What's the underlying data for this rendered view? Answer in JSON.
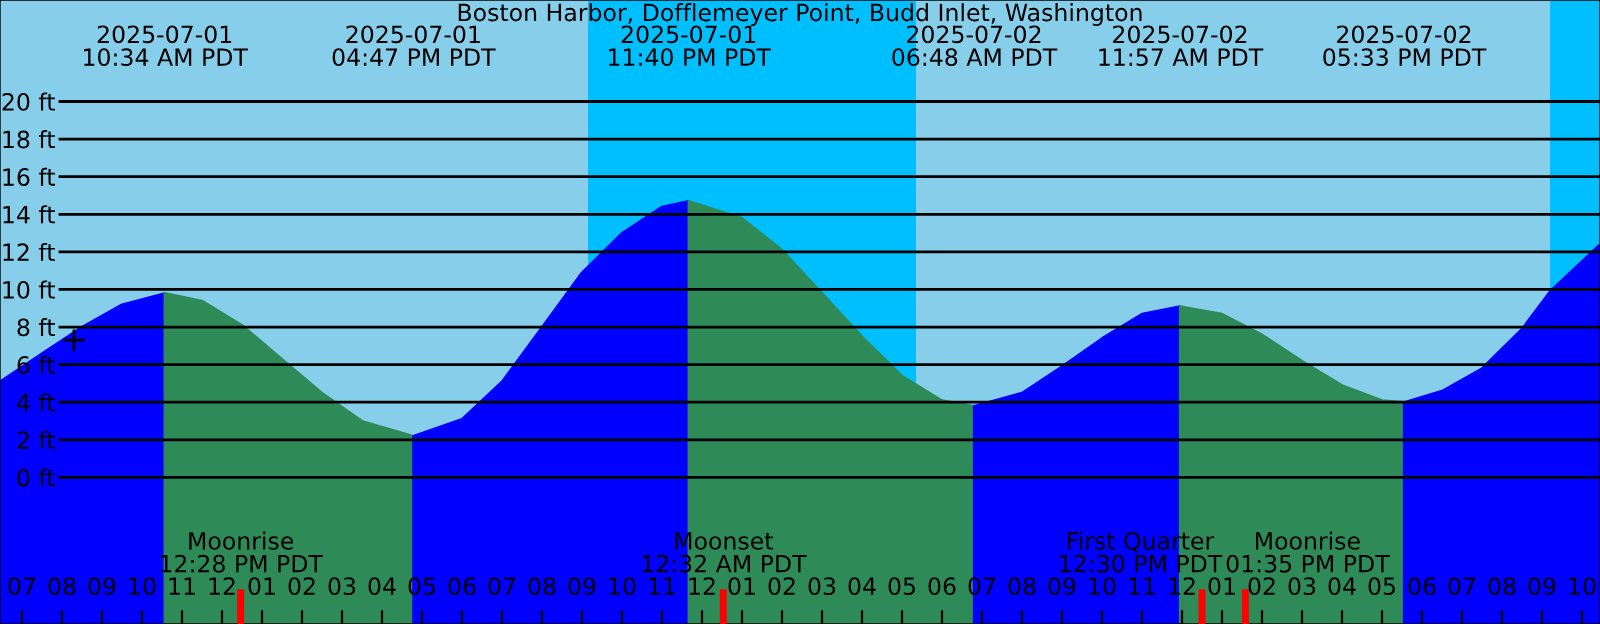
{
  "chart_data": {
    "type": "area",
    "title": "Boston Harbor, Dofflemeyer Point, Budd Inlet, Washington",
    "series": [
      {
        "color": "#0000ff",
        "x": [
          "2025-07-01T06:27",
          "2025-07-01T07:30",
          "2025-07-01T08:30",
          "2025-07-01T09:30",
          "2025-07-01T10:34"
        ],
        "values": [
          5.1,
          6.6,
          8.0,
          9.2,
          9.8
        ]
      },
      {
        "color": "#2e8b57",
        "x": [
          "2025-07-01T10:34",
          "2025-07-01T11:30",
          "2025-07-01T12:30",
          "2025-07-01T13:30",
          "2025-07-01T14:30",
          "2025-07-01T15:30",
          "2025-07-01T16:47"
        ],
        "values": [
          9.8,
          9.4,
          8.1,
          6.3,
          4.5,
          3.0,
          2.2
        ]
      },
      {
        "color": "#0000ff",
        "x": [
          "2025-07-01T16:47",
          "2025-07-01T18:00",
          "2025-07-01T19:00",
          "2025-07-01T20:00",
          "2025-07-01T21:00",
          "2025-07-01T22:00",
          "2025-07-01T23:00",
          "2025-07-01T23:40"
        ],
        "values": [
          2.2,
          3.1,
          5.1,
          8.0,
          10.9,
          13.0,
          14.4,
          14.7
        ]
      },
      {
        "color": "#2e8b57",
        "x": [
          "2025-07-01T23:40",
          "2025-07-02T01:00",
          "2025-07-02T02:00",
          "2025-07-02T03:00",
          "2025-07-02T04:00",
          "2025-07-02T05:00",
          "2025-07-02T06:00",
          "2025-07-02T06:48"
        ],
        "values": [
          14.7,
          13.8,
          12.1,
          9.8,
          7.5,
          5.4,
          4.1,
          3.8
        ]
      },
      {
        "color": "#0000ff",
        "x": [
          "2025-07-02T06:48",
          "2025-07-02T08:00",
          "2025-07-02T09:00",
          "2025-07-02T10:00",
          "2025-07-02T11:00",
          "2025-07-02T11:57"
        ],
        "values": [
          3.8,
          4.5,
          5.9,
          7.4,
          8.7,
          9.1
        ]
      },
      {
        "color": "#2e8b57",
        "x": [
          "2025-07-02T11:57",
          "2025-07-02T13:00",
          "2025-07-02T14:00",
          "2025-07-02T15:00",
          "2025-07-02T16:00",
          "2025-07-02T17:00",
          "2025-07-02T17:33"
        ],
        "values": [
          9.1,
          8.7,
          7.6,
          6.2,
          4.9,
          4.1,
          4.0
        ]
      },
      {
        "color": "#0000ff",
        "x": [
          "2025-07-02T17:33",
          "2025-07-02T18:30",
          "2025-07-02T19:30",
          "2025-07-02T20:30",
          "2025-07-02T21:12",
          "2025-07-02T22:27"
        ],
        "values": [
          4.0,
          4.6,
          5.8,
          7.9,
          9.9,
          12.4
        ]
      },
      {
        "type": "scatter",
        "marker": "cross",
        "color": "#000000",
        "x": [
          "2025-07-01T08:18"
        ],
        "values": [
          7.3
        ]
      }
    ],
    "xlim": [
      "2025-07-01T06:27",
      "2025-07-02T22:27"
    ],
    "ylim": [
      -7.8,
      25.4
    ],
    "xticks": [
      {
        "value": "2025-07-01T07:00",
        "label": "07"
      },
      {
        "value": "2025-07-01T08:00",
        "label": "08"
      },
      {
        "value": "2025-07-01T09:00",
        "label": "09"
      },
      {
        "value": "2025-07-01T10:00",
        "label": "10"
      },
      {
        "value": "2025-07-01T11:00",
        "label": "11"
      },
      {
        "value": "2025-07-01T12:00",
        "label": "12"
      },
      {
        "value": "2025-07-01T13:00",
        "label": "01"
      },
      {
        "value": "2025-07-01T14:00",
        "label": "02"
      },
      {
        "value": "2025-07-01T15:00",
        "label": "03"
      },
      {
        "value": "2025-07-01T16:00",
        "label": "04"
      },
      {
        "value": "2025-07-01T17:00",
        "label": "05"
      },
      {
        "value": "2025-07-01T18:00",
        "label": "06"
      },
      {
        "value": "2025-07-01T19:00",
        "label": "07"
      },
      {
        "value": "2025-07-01T20:00",
        "label": "08"
      },
      {
        "value": "2025-07-01T21:00",
        "label": "09"
      },
      {
        "value": "2025-07-01T22:00",
        "label": "10"
      },
      {
        "value": "2025-07-01T23:00",
        "label": "11"
      },
      {
        "value": "2025-07-02T00:00",
        "label": "12"
      },
      {
        "value": "2025-07-02T01:00",
        "label": "01"
      },
      {
        "value": "2025-07-02T02:00",
        "label": "02"
      },
      {
        "value": "2025-07-02T03:00",
        "label": "03"
      },
      {
        "value": "2025-07-02T04:00",
        "label": "04"
      },
      {
        "value": "2025-07-02T05:00",
        "label": "05"
      },
      {
        "value": "2025-07-02T06:00",
        "label": "06"
      },
      {
        "value": "2025-07-02T07:00",
        "label": "07"
      },
      {
        "value": "2025-07-02T08:00",
        "label": "08"
      },
      {
        "value": "2025-07-02T09:00",
        "label": "09"
      },
      {
        "value": "2025-07-02T10:00",
        "label": "10"
      },
      {
        "value": "2025-07-02T11:00",
        "label": "11"
      },
      {
        "value": "2025-07-02T12:00",
        "label": "12"
      },
      {
        "value": "2025-07-02T13:00",
        "label": "01"
      },
      {
        "value": "2025-07-02T14:00",
        "label": "02"
      },
      {
        "value": "2025-07-02T15:00",
        "label": "03"
      },
      {
        "value": "2025-07-02T16:00",
        "label": "04"
      },
      {
        "value": "2025-07-02T17:00",
        "label": "05"
      },
      {
        "value": "2025-07-02T18:00",
        "label": "06"
      },
      {
        "value": "2025-07-02T19:00",
        "label": "07"
      },
      {
        "value": "2025-07-02T20:00",
        "label": "08"
      },
      {
        "value": "2025-07-02T21:00",
        "label": "09"
      },
      {
        "value": "2025-07-02T22:00",
        "label": "10"
      }
    ],
    "yticks": [
      {
        "value": 0,
        "label": "0 ft"
      },
      {
        "value": 2,
        "label": "2 ft"
      },
      {
        "value": 4,
        "label": "4 ft"
      },
      {
        "value": 6,
        "label": "6 ft"
      },
      {
        "value": 8,
        "label": "8 ft"
      },
      {
        "value": 10,
        "label": "10 ft"
      },
      {
        "value": 12,
        "label": "12 ft"
      },
      {
        "value": 14,
        "label": "14 ft"
      },
      {
        "value": 16,
        "label": "16 ft"
      },
      {
        "value": 18,
        "label": "18 ft"
      },
      {
        "value": 20,
        "label": "20 ft"
      }
    ],
    "grid": "y",
    "legend": false,
    "bands": [
      {
        "axis": "x",
        "from": "2025-07-01T21:09",
        "to": "2025-07-02T05:21",
        "color": "#00bfff"
      },
      {
        "axis": "x",
        "from": "2025-07-02T21:12",
        "to": "2025-07-02T22:27",
        "color": "#00bfff"
      }
    ],
    "ref_lines": [
      {
        "axis": "x",
        "value": "2025-07-01T12:28",
        "label": "Moonrise\n12:28 PM PDT",
        "color": "#ff0000"
      },
      {
        "axis": "x",
        "value": "2025-07-02T00:32",
        "label": "Moonset\n12:32 AM PDT",
        "color": "#ff0000"
      },
      {
        "axis": "x",
        "value": "2025-07-02T12:30",
        "label": "First Quarter\n12:30 PM PDT",
        "color": "#ff0000"
      },
      {
        "axis": "x",
        "value": "2025-07-02T13:35",
        "label": "Moonrise\n01:35 PM PDT",
        "color": "#ff0000"
      }
    ],
    "annotations": [
      "2025-07-01\n10:34 AM PDT",
      "2025-07-01\n04:47 PM PDT",
      "2025-07-01\n11:40 PM PDT",
      "2025-07-02\n06:48 AM PDT",
      "2025-07-02\n11:57 AM PDT",
      "2025-07-02\n05:33 PM PDT"
    ]
  }
}
